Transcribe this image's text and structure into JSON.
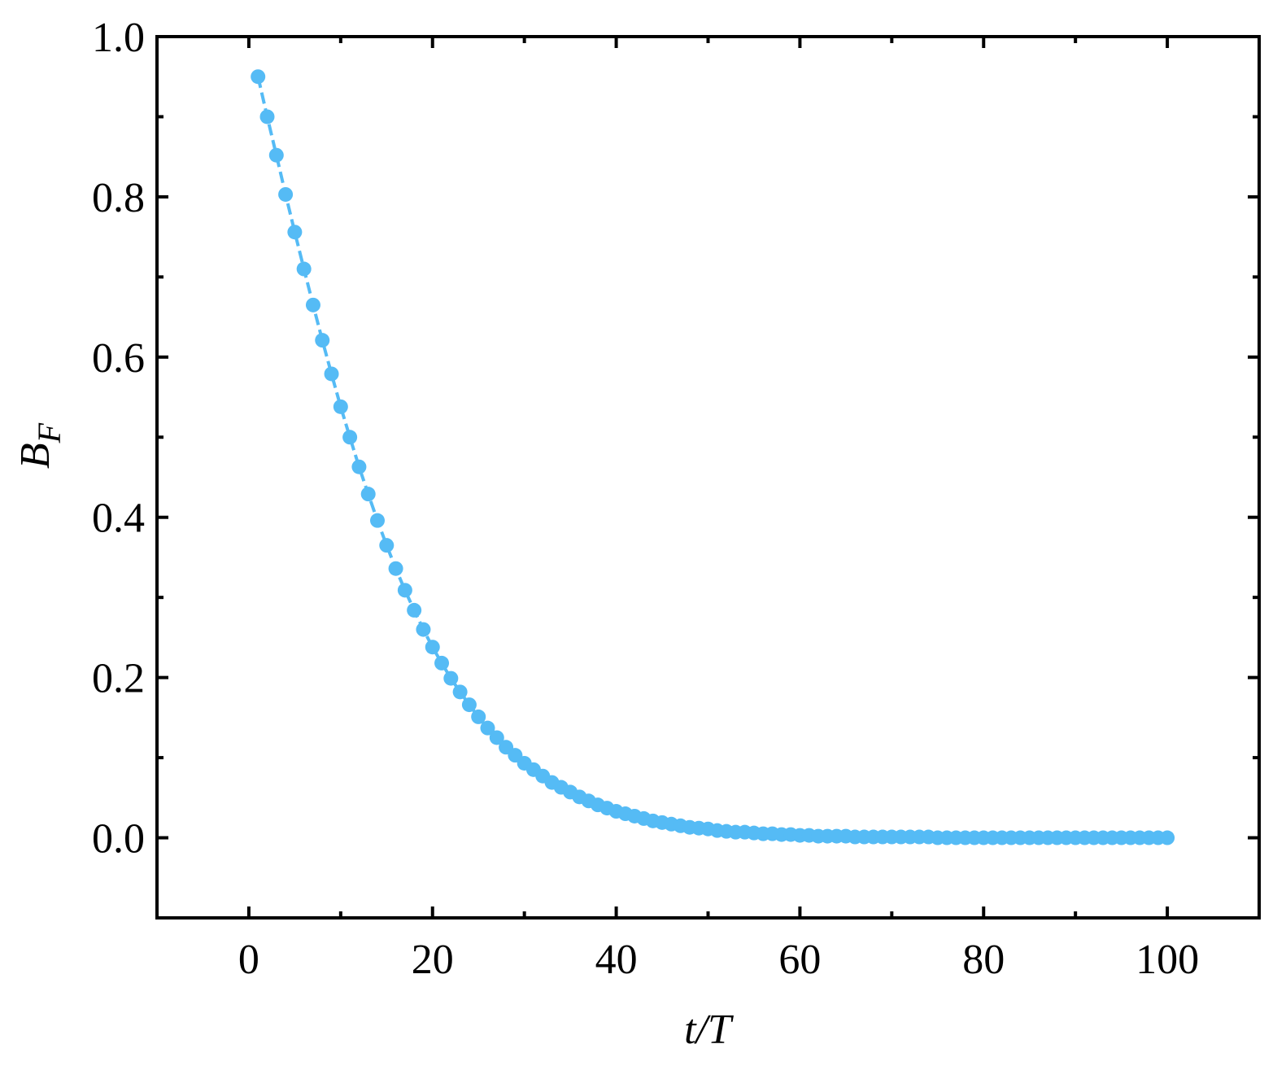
{
  "chart_data": {
    "type": "line",
    "xlabel": "t/T",
    "ylabel": "B",
    "ylabel_sub": "F",
    "color": "#55bbf5",
    "xlim": [
      -10,
      110
    ],
    "ylim": [
      -0.1,
      1.0
    ],
    "xticks": [
      0,
      20,
      40,
      60,
      80,
      100
    ],
    "yticks": [
      {
        "value": 0,
        "label": "0.0"
      },
      0.2,
      0.4,
      0.6,
      0.8,
      {
        "value": 1,
        "label": "1.0"
      }
    ],
    "xminorticks": [
      10,
      30,
      50,
      70,
      90
    ],
    "yminorticks": [
      0.1,
      0.3,
      0.5,
      0.7,
      0.9
    ],
    "x": [
      1,
      2,
      3,
      4,
      5,
      6,
      7,
      8,
      9,
      10,
      11,
      12,
      13,
      14,
      15,
      16,
      17,
      18,
      19,
      20,
      21,
      22,
      23,
      24,
      25,
      26,
      27,
      28,
      29,
      30,
      31,
      32,
      33,
      34,
      35,
      36,
      37,
      38,
      39,
      40,
      41,
      42,
      43,
      44,
      45,
      46,
      47,
      48,
      49,
      50,
      51,
      52,
      53,
      54,
      55,
      56,
      57,
      58,
      59,
      60,
      61,
      62,
      63,
      64,
      65,
      66,
      67,
      68,
      69,
      70,
      71,
      72,
      73,
      74,
      75,
      76,
      77,
      78,
      79,
      80,
      81,
      82,
      83,
      84,
      85,
      86,
      87,
      88,
      89,
      90,
      91,
      92,
      93,
      94,
      95,
      96,
      97,
      98,
      99,
      100
    ],
    "values": [
      0.95,
      0.9,
      0.852,
      0.803,
      0.756,
      0.71,
      0.665,
      0.621,
      0.579,
      0.538,
      0.5,
      0.463,
      0.429,
      0.396,
      0.365,
      0.336,
      0.309,
      0.284,
      0.26,
      0.238,
      0.218,
      0.199,
      0.182,
      0.166,
      0.151,
      0.137,
      0.125,
      0.113,
      0.103,
      0.093,
      0.085,
      0.077,
      0.069,
      0.063,
      0.057,
      0.051,
      0.046,
      0.041,
      0.037,
      0.033,
      0.03,
      0.027,
      0.024,
      0.021,
      0.019,
      0.017,
      0.015,
      0.013,
      0.012,
      0.011,
      0.009,
      0.008,
      0.007,
      0.007,
      0.006,
      0.005,
      0.005,
      0.004,
      0.004,
      0.003,
      0.003,
      0.002,
      0.002,
      0.002,
      0.002,
      0.001,
      0.001,
      0.001,
      0.001,
      0.001,
      0.001,
      0.001,
      0.001,
      0.001,
      0,
      0,
      0,
      0,
      0,
      0,
      0,
      0,
      0,
      0,
      0,
      0,
      0,
      0,
      0,
      0,
      0,
      0,
      0,
      0,
      0,
      0,
      0,
      0,
      0,
      0
    ]
  }
}
